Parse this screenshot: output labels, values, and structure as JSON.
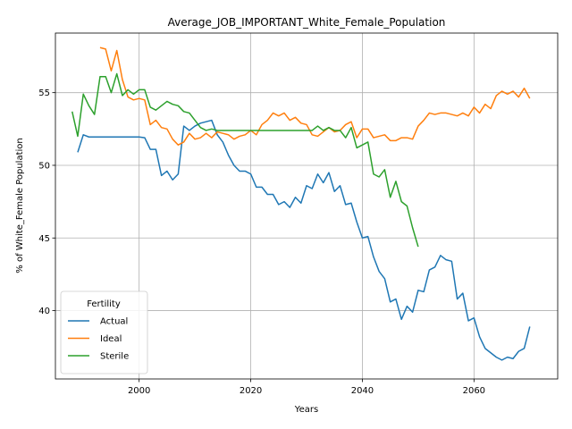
{
  "chart_data": {
    "type": "line",
    "title": "Average_JOB_IMPORTANT_White_Female_Population",
    "xlabel": "Years",
    "ylabel": "% of White_Female Population",
    "xlim": [
      1985,
      2075
    ],
    "ylim": [
      35.3,
      59.1
    ],
    "x_ticks": [
      2000,
      2020,
      2040,
      2060
    ],
    "y_ticks": [
      40,
      45,
      50,
      55
    ],
    "grid": true,
    "legend": {
      "title": "Fertility",
      "position": "lower-left"
    },
    "series": [
      {
        "name": "Actual",
        "color": "#1f77b4",
        "points": [
          [
            1989,
            50.9
          ],
          [
            1990,
            52.1
          ],
          [
            1991,
            51.95
          ],
          [
            1992,
            51.95
          ],
          [
            1993,
            51.95
          ],
          [
            1994,
            51.95
          ],
          [
            1995,
            51.95
          ],
          [
            1996,
            51.95
          ],
          [
            1997,
            51.95
          ],
          [
            1998,
            51.95
          ],
          [
            1999,
            51.95
          ],
          [
            2000,
            51.95
          ],
          [
            2001,
            51.9
          ],
          [
            2002,
            51.1
          ],
          [
            2003,
            51.1
          ],
          [
            2004,
            49.3
          ],
          [
            2005,
            49.6
          ],
          [
            2006,
            49.0
          ],
          [
            2007,
            49.4
          ],
          [
            2008,
            52.7
          ],
          [
            2009,
            52.4
          ],
          [
            2010,
            52.7
          ],
          [
            2011,
            52.9
          ],
          [
            2012,
            53.0
          ],
          [
            2013,
            53.1
          ],
          [
            2014,
            52.1
          ],
          [
            2015,
            51.6
          ],
          [
            2016,
            50.7
          ],
          [
            2017,
            50.0
          ],
          [
            2018,
            49.6
          ],
          [
            2019,
            49.6
          ],
          [
            2020,
            49.4
          ],
          [
            2021,
            48.5
          ],
          [
            2022,
            48.5
          ],
          [
            2023,
            48.0
          ],
          [
            2024,
            48.0
          ],
          [
            2025,
            47.3
          ],
          [
            2026,
            47.5
          ],
          [
            2027,
            47.1
          ],
          [
            2028,
            47.8
          ],
          [
            2029,
            47.4
          ],
          [
            2030,
            48.6
          ],
          [
            2031,
            48.4
          ],
          [
            2032,
            49.4
          ],
          [
            2033,
            48.8
          ],
          [
            2034,
            49.5
          ],
          [
            2035,
            48.2
          ],
          [
            2036,
            48.6
          ],
          [
            2037,
            47.3
          ],
          [
            2038,
            47.4
          ],
          [
            2039,
            46.1
          ],
          [
            2040,
            45.0
          ],
          [
            2041,
            45.1
          ],
          [
            2042,
            43.7
          ],
          [
            2043,
            42.7
          ],
          [
            2044,
            42.2
          ],
          [
            2045,
            40.6
          ],
          [
            2046,
            40.8
          ],
          [
            2047,
            39.4
          ],
          [
            2048,
            40.3
          ],
          [
            2049,
            39.9
          ],
          [
            2050,
            41.4
          ],
          [
            2051,
            41.3
          ],
          [
            2052,
            42.8
          ],
          [
            2053,
            43.0
          ],
          [
            2054,
            43.8
          ],
          [
            2055,
            43.5
          ],
          [
            2056,
            43.4
          ],
          [
            2057,
            40.8
          ],
          [
            2058,
            41.2
          ],
          [
            2059,
            39.3
          ],
          [
            2060,
            39.5
          ],
          [
            2061,
            38.2
          ],
          [
            2062,
            37.4
          ],
          [
            2063,
            37.1
          ],
          [
            2064,
            36.8
          ],
          [
            2065,
            36.6
          ],
          [
            2066,
            36.8
          ],
          [
            2067,
            36.7
          ],
          [
            2068,
            37.2
          ],
          [
            2069,
            37.4
          ],
          [
            2070,
            38.9
          ]
        ]
      },
      {
        "name": "Ideal",
        "color": "#ff7f0e",
        "points": [
          [
            1993,
            58.1
          ],
          [
            1994,
            58.0
          ],
          [
            1995,
            56.5
          ],
          [
            1996,
            57.9
          ],
          [
            1997,
            55.9
          ],
          [
            1998,
            54.7
          ],
          [
            1999,
            54.5
          ],
          [
            2000,
            54.6
          ],
          [
            2001,
            54.5
          ],
          [
            2002,
            52.8
          ],
          [
            2003,
            53.1
          ],
          [
            2004,
            52.6
          ],
          [
            2005,
            52.5
          ],
          [
            2006,
            51.8
          ],
          [
            2007,
            51.4
          ],
          [
            2008,
            51.6
          ],
          [
            2009,
            52.2
          ],
          [
            2010,
            51.8
          ],
          [
            2011,
            51.9
          ],
          [
            2012,
            52.2
          ],
          [
            2013,
            51.9
          ],
          [
            2014,
            52.3
          ],
          [
            2015,
            52.2
          ],
          [
            2016,
            52.1
          ],
          [
            2017,
            51.8
          ],
          [
            2018,
            52.0
          ],
          [
            2019,
            52.1
          ],
          [
            2020,
            52.4
          ],
          [
            2021,
            52.1
          ],
          [
            2022,
            52.8
          ],
          [
            2023,
            53.1
          ],
          [
            2024,
            53.6
          ],
          [
            2025,
            53.4
          ],
          [
            2026,
            53.6
          ],
          [
            2027,
            53.1
          ],
          [
            2028,
            53.3
          ],
          [
            2029,
            52.9
          ],
          [
            2030,
            52.8
          ],
          [
            2031,
            52.1
          ],
          [
            2032,
            52.0
          ],
          [
            2033,
            52.3
          ],
          [
            2034,
            52.6
          ],
          [
            2035,
            52.3
          ],
          [
            2036,
            52.4
          ],
          [
            2037,
            52.8
          ],
          [
            2038,
            53.0
          ],
          [
            2039,
            51.9
          ],
          [
            2040,
            52.5
          ],
          [
            2041,
            52.5
          ],
          [
            2042,
            51.9
          ],
          [
            2043,
            52.0
          ],
          [
            2044,
            52.1
          ],
          [
            2045,
            51.7
          ],
          [
            2046,
            51.7
          ],
          [
            2047,
            51.9
          ],
          [
            2048,
            51.9
          ],
          [
            2049,
            51.8
          ],
          [
            2050,
            52.7
          ],
          [
            2051,
            53.1
          ],
          [
            2052,
            53.6
          ],
          [
            2053,
            53.5
          ],
          [
            2054,
            53.6
          ],
          [
            2055,
            53.6
          ],
          [
            2056,
            53.5
          ],
          [
            2057,
            53.4
          ],
          [
            2058,
            53.6
          ],
          [
            2059,
            53.4
          ],
          [
            2060,
            54.0
          ],
          [
            2061,
            53.6
          ],
          [
            2062,
            54.2
          ],
          [
            2063,
            53.9
          ],
          [
            2064,
            54.8
          ],
          [
            2065,
            55.1
          ],
          [
            2066,
            54.9
          ],
          [
            2067,
            55.1
          ],
          [
            2068,
            54.7
          ],
          [
            2069,
            55.3
          ],
          [
            2070,
            54.6
          ]
        ]
      },
      {
        "name": "Sterile",
        "color": "#2ca02c",
        "points": [
          [
            1988,
            53.7
          ],
          [
            1989,
            52.0
          ],
          [
            1990,
            54.9
          ],
          [
            1991,
            54.1
          ],
          [
            1992,
            53.5
          ],
          [
            1993,
            56.1
          ],
          [
            1994,
            56.1
          ],
          [
            1995,
            55.0
          ],
          [
            1996,
            56.3
          ],
          [
            1997,
            54.8
          ],
          [
            1998,
            55.2
          ],
          [
            1999,
            54.9
          ],
          [
            2000,
            55.2
          ],
          [
            2001,
            55.2
          ],
          [
            2002,
            54.0
          ],
          [
            2003,
            53.8
          ],
          [
            2004,
            54.1
          ],
          [
            2005,
            54.4
          ],
          [
            2006,
            54.2
          ],
          [
            2007,
            54.1
          ],
          [
            2008,
            53.7
          ],
          [
            2009,
            53.6
          ],
          [
            2010,
            53.1
          ],
          [
            2011,
            52.6
          ],
          [
            2012,
            52.4
          ],
          [
            2013,
            52.5
          ],
          [
            2014,
            52.4
          ],
          [
            2015,
            52.4
          ],
          [
            2016,
            52.4
          ],
          [
            2017,
            52.4
          ],
          [
            2018,
            52.4
          ],
          [
            2019,
            52.4
          ],
          [
            2020,
            52.4
          ],
          [
            2021,
            52.4
          ],
          [
            2022,
            52.4
          ],
          [
            2023,
            52.4
          ],
          [
            2024,
            52.4
          ],
          [
            2025,
            52.4
          ],
          [
            2026,
            52.4
          ],
          [
            2027,
            52.4
          ],
          [
            2028,
            52.4
          ],
          [
            2029,
            52.4
          ],
          [
            2030,
            52.4
          ],
          [
            2031,
            52.4
          ],
          [
            2032,
            52.7
          ],
          [
            2033,
            52.4
          ],
          [
            2034,
            52.6
          ],
          [
            2035,
            52.4
          ],
          [
            2036,
            52.4
          ],
          [
            2037,
            51.9
          ],
          [
            2038,
            52.6
          ],
          [
            2039,
            51.2
          ],
          [
            2040,
            51.4
          ],
          [
            2041,
            51.6
          ],
          [
            2042,
            49.4
          ],
          [
            2043,
            49.2
          ],
          [
            2044,
            49.7
          ],
          [
            2045,
            47.8
          ],
          [
            2046,
            48.9
          ],
          [
            2047,
            47.5
          ],
          [
            2048,
            47.2
          ],
          [
            2049,
            45.7
          ],
          [
            2050,
            44.4
          ]
        ]
      }
    ]
  }
}
